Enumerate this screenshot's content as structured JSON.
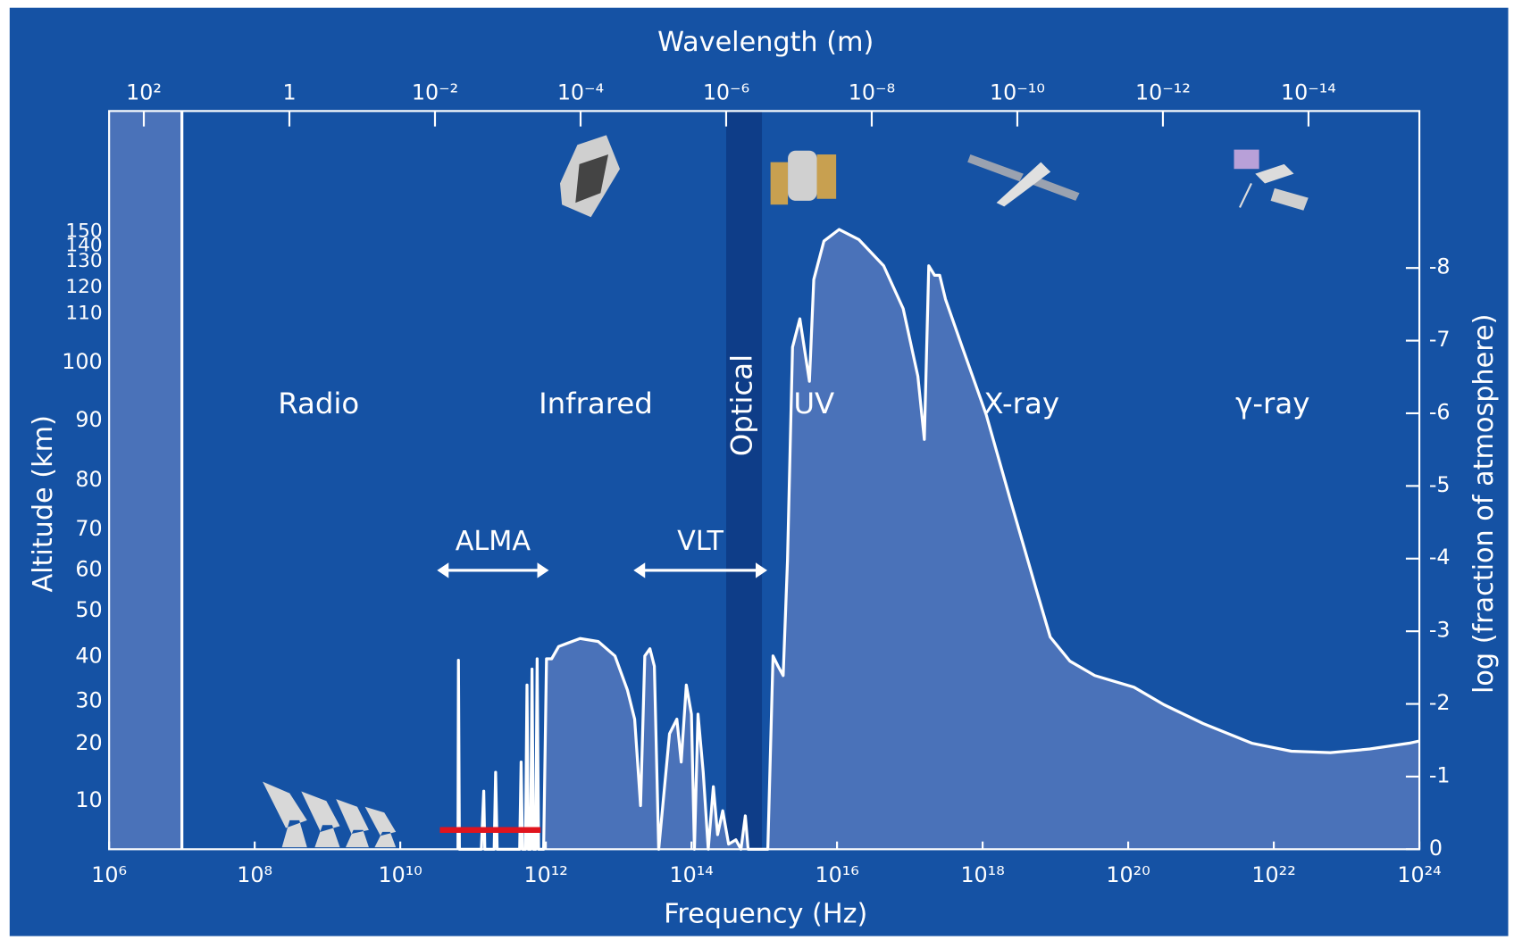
{
  "chart_data": {
    "type": "area",
    "xlabel": "Frequency (Hz)",
    "x2label": "Wavelength (m)",
    "ylabel": "log (fraction of atmosphere)",
    "left_axis": {
      "label": "Altitude (km)",
      "ticks": [
        10,
        20,
        30,
        40,
        50,
        60,
        70,
        80,
        90,
        100,
        110,
        120,
        130,
        140,
        150
      ]
    },
    "xscale": "log",
    "xlim": [
      1000000.0,
      1e+24
    ],
    "xticks": [
      {
        "value": 1000000.0,
        "label": "10⁶"
      },
      {
        "value": 100000000.0,
        "label": "10⁸"
      },
      {
        "value": 10000000000.0,
        "label": "10¹⁰"
      },
      {
        "value": 1000000000000.0,
        "label": "10¹²"
      },
      {
        "value": 100000000000000.0,
        "label": "10¹⁴"
      },
      {
        "value": 1e+16,
        "label": "10¹⁶"
      },
      {
        "value": 1e+18,
        "label": "10¹⁸"
      },
      {
        "value": 1e+20,
        "label": "10²⁰"
      },
      {
        "value": 1e+22,
        "label": "10²²"
      },
      {
        "value": 1e+24,
        "label": "10²⁴"
      }
    ],
    "x2lim": [
      299.8,
      2.998e-16
    ],
    "x2ticks": [
      {
        "value": 100,
        "label": "10²"
      },
      1,
      {
        "value": 0.01,
        "label": "10⁻²"
      },
      {
        "value": 0.0001,
        "label": "10⁻⁴"
      },
      {
        "value": 1e-06,
        "label": "10⁻⁶"
      },
      {
        "value": 1e-08,
        "label": "10⁻⁸"
      },
      {
        "value": 1e-10,
        "label": "10⁻¹⁰"
      },
      {
        "value": 1e-12,
        "label": "10⁻¹²"
      },
      {
        "value": 1e-14,
        "label": "10⁻¹⁴"
      }
    ],
    "ylim": [
      0,
      -10.16
    ],
    "yticks": [
      0,
      -1,
      -2,
      -3,
      -4,
      -5,
      -6,
      -7,
      -8
    ],
    "color": "#ffffff",
    "fill_color": "#4a72b9",
    "opaque_below": 10000000.0,
    "optical_band": [
      300000000000000.0,
      930000000000000.0
    ],
    "region_labels": [
      "Radio",
      "Infrared",
      "Optical",
      "UV",
      "X-ray",
      "γ-ray"
    ],
    "ranges": [
      {
        "label": "ALMA",
        "range": [
          32000000000.0,
          1100000000000.0
        ]
      },
      {
        "label": "VLT",
        "range": [
          16000000000000.0,
          1100000000000000.0
        ]
      }
    ],
    "alma_band": [
      35000000000.0,
      850000000000.0
    ],
    "x": [
      62000000000.0,
      63000000000.0,
      65000000000.0,
      130000000000.0,
      140000000000.0,
      145000000000.0,
      195000000000.0,
      204000000000.0,
      214000000000.0,
      437000000000.0,
      457000000000.0,
      479000000000.0,
      525000000000.0,
      550000000000.0,
      575000000000.0,
      617000000000.0,
      646000000000.0,
      676000000000.0,
      724000000000.0,
      759000000000.0,
      794000000000.0,
      930000000000.0,
      1020000000000.0,
      1200000000000.0,
      1500000000000.0,
      2950000000000.0,
      5250000000000.0,
      8900000000000.0,
      13200000000000.0,
      16600000000000.0,
      20000000000000.0,
      22900000000000.0,
      26900000000000.0,
      30900000000000.0,
      35500000000000.0,
      50000000000000.0,
      63000000000000.0,
      72400000000000.0,
      85000000000000.0,
      100000000000000.0,
      110000000000000.0,
      123000000000000.0,
      145000000000000.0,
      170000000000000.0,
      200000000000000.0,
      229000000000000.0,
      269000000000000.0,
      324000000000000.0,
      407000000000000.0,
      479000000000000.0,
      550000000000000.0,
      600000000000000.0,
      1120000000000000.0,
      1320000000000000.0,
      1550000000000000.0,
      1820000000000000.0,
      2090000000000000.0,
      2450000000000000.0,
      3090000000000000.0,
      3720000000000000.0,
      4170000000000000.0,
      4790000000000000.0,
      6600000000000000.0,
      1.07e+16,
      2e+16,
      4.37e+16,
      8.1e+16,
      1.29e+17,
      1.58e+17,
      1.82e+17,
      2.19e+17,
      2.57e+17,
      3.09e+17,
      5.25e+17,
      1.12e+18,
      2.45e+18,
      5.4e+18,
      8.5e+18,
      1.58e+19,
      3.47e+19,
      1.2e+20,
      3.09e+20,
      1.07e+21,
      5e+21,
      1.74e+22,
      6e+22,
      2.09e+23,
      7.24e+23,
      1e+24
    ],
    "values": [
      0,
      -2.6,
      0,
      0,
      -0.8,
      0,
      0,
      -1.06,
      0,
      0,
      -1.2,
      0,
      0,
      -2.26,
      0,
      0,
      -2.48,
      0,
      0,
      -2.62,
      0,
      0,
      -2.62,
      -2.62,
      -2.79,
      -2.9,
      -2.86,
      -2.66,
      -2.19,
      -1.79,
      -0.6,
      -2.66,
      -2.76,
      -2.52,
      0,
      -1.59,
      -1.79,
      -1.2,
      -2.26,
      -1.86,
      0,
      -1.86,
      -1.06,
      0,
      -0.86,
      -0.2,
      -0.53,
      -0.07,
      -0.13,
      0,
      -0.46,
      0,
      0,
      -2.66,
      -2.52,
      -2.39,
      -3.98,
      -6.91,
      -7.3,
      -6.77,
      -6.44,
      -7.84,
      -8.37,
      -8.53,
      -8.39,
      -8.03,
      -7.44,
      -6.51,
      -5.64,
      -8.03,
      -7.9,
      -7.9,
      -7.57,
      -6.91,
      -5.98,
      -4.78,
      -3.59,
      -2.92,
      -2.59,
      -2.39,
      -2.23,
      -1.99,
      -1.73,
      -1.46,
      -1.35,
      -1.33,
      -1.38,
      -1.46,
      -1.49
    ]
  }
}
